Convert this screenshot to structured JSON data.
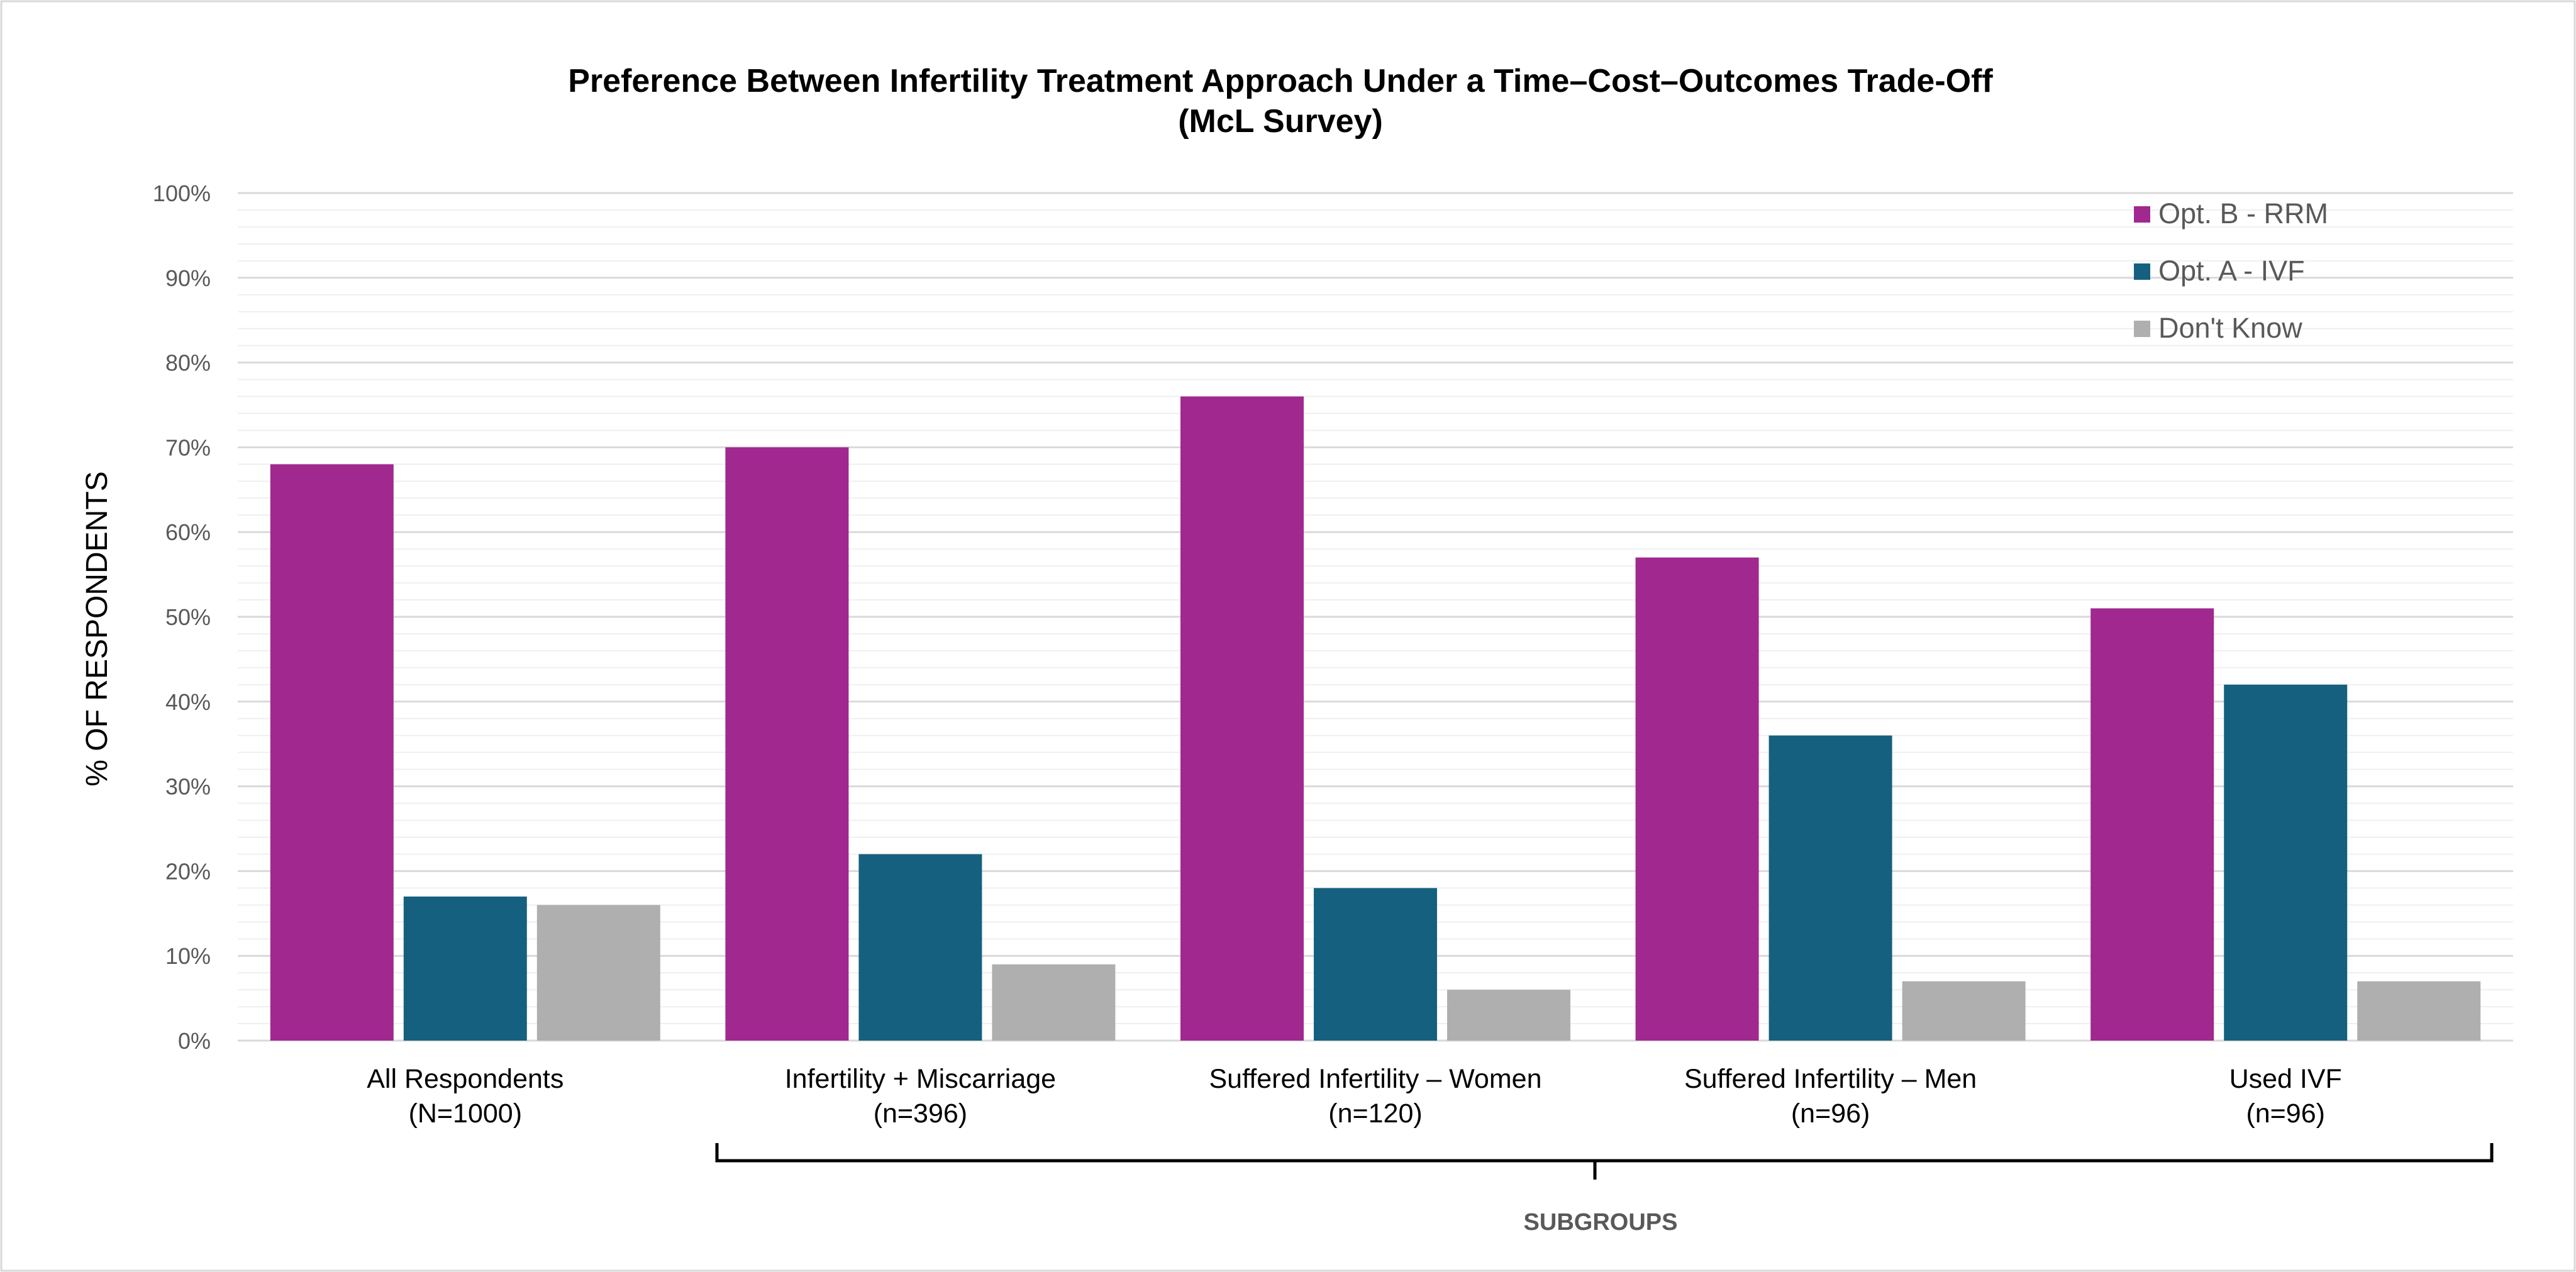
{
  "chart_data": {
    "type": "bar",
    "title": "Preference Between Infertility Treatment Approach Under a Time–Cost–Outcomes Trade-Off",
    "subtitle": "(McL Survey)",
    "ylabel": "% OF RESPONDENTS",
    "xlabel": "SUBGROUPS",
    "ylim": [
      0,
      100
    ],
    "yticks": [
      "0%",
      "10%",
      "20%",
      "30%",
      "40%",
      "50%",
      "60%",
      "70%",
      "80%",
      "90%",
      "100%"
    ],
    "grid": true,
    "legend_position": "top-right",
    "categories": [
      {
        "line1": "All Respondents",
        "line2": "(N=1000)"
      },
      {
        "line1": "Infertility + Miscarriage",
        "line2": "(n=396)"
      },
      {
        "line1": "Suffered Infertility –  Women",
        "line2": "(n=120)"
      },
      {
        "line1": "Suffered Infertility – Men",
        "line2": "(n=96)"
      },
      {
        "line1": "Used IVF",
        "line2": "(n=96)"
      }
    ],
    "series": [
      {
        "name": "Opt. B - RRM",
        "color": "#A0288F",
        "values": [
          68,
          70,
          76,
          57,
          51
        ]
      },
      {
        "name": "Opt. A -  IVF",
        "color": "#16607F",
        "values": [
          17,
          22,
          18,
          36,
          42
        ]
      },
      {
        "name": "Don't Know",
        "color": "#AFAFAF",
        "values": [
          16,
          9,
          6,
          7,
          7
        ]
      }
    ]
  }
}
